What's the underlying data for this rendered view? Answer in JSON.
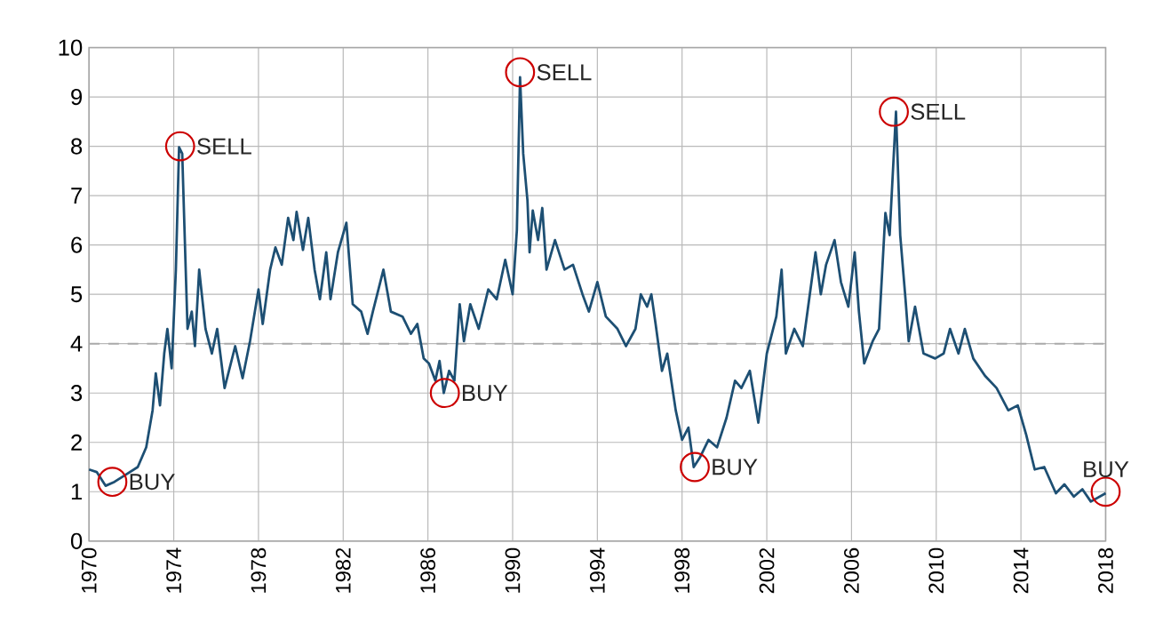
{
  "chart_data": {
    "type": "line",
    "x": [
      1970,
      1970.36,
      1970.78,
      1971.2,
      1971.75,
      1972.3,
      1972.7,
      1973.0,
      1973.15,
      1973.35,
      1973.55,
      1973.7,
      1973.9,
      1974.1,
      1974.25,
      1974.4,
      1974.55,
      1974.65,
      1974.85,
      1975.0,
      1975.2,
      1975.5,
      1975.8,
      1976.05,
      1976.4,
      1976.9,
      1977.25,
      1977.6,
      1978.0,
      1978.2,
      1978.55,
      1978.8,
      1979.1,
      1979.4,
      1979.65,
      1979.8,
      1980.1,
      1980.35,
      1980.65,
      1980.9,
      1981.2,
      1981.4,
      1981.75,
      1982.15,
      1982.45,
      1982.85,
      1983.15,
      1983.4,
      1983.9,
      1984.25,
      1984.8,
      1985.2,
      1985.5,
      1985.8,
      1986.05,
      1986.35,
      1986.55,
      1986.75,
      1987.0,
      1987.25,
      1987.5,
      1987.7,
      1988.0,
      1988.4,
      1988.85,
      1989.25,
      1989.65,
      1990.0,
      1990.2,
      1990.35,
      1990.5,
      1990.7,
      1990.8,
      1990.95,
      1991.2,
      1991.4,
      1991.6,
      1992.0,
      1992.45,
      1992.85,
      1993.3,
      1993.6,
      1994.0,
      1994.4,
      1994.95,
      1995.35,
      1995.8,
      1996.05,
      1996.35,
      1996.55,
      1996.75,
      1997.05,
      1997.3,
      1997.7,
      1998.0,
      1998.3,
      1998.55,
      1998.85,
      1999.25,
      1999.65,
      2000.1,
      2000.5,
      2000.8,
      2001.2,
      2001.6,
      2002.0,
      2002.45,
      2002.7,
      2002.9,
      2003.3,
      2003.7,
      2004.0,
      2004.3,
      2004.55,
      2004.8,
      2005.2,
      2005.5,
      2005.85,
      2006.15,
      2006.35,
      2006.6,
      2007.0,
      2007.3,
      2007.6,
      2007.8,
      2008.1,
      2008.3,
      2008.55,
      2008.7,
      2009.0,
      2009.4,
      2009.95,
      2010.35,
      2010.65,
      2011.05,
      2011.35,
      2011.75,
      2012.3,
      2012.85,
      2013.4,
      2013.85,
      2014.25,
      2014.65,
      2015.1,
      2015.65,
      2016.05,
      2016.5,
      2016.9,
      2017.3,
      2018.0
    ],
    "series": [
      {
        "color": "#1d4f73",
        "values": [
          1.45,
          1.4,
          1.12,
          1.2,
          1.35,
          1.5,
          1.9,
          2.65,
          3.4,
          2.75,
          3.8,
          4.3,
          3.5,
          5.5,
          7.98,
          7.85,
          5.7,
          4.3,
          4.65,
          3.95,
          5.5,
          4.3,
          3.8,
          4.3,
          3.1,
          3.95,
          3.3,
          4.05,
          5.1,
          4.4,
          5.5,
          5.95,
          5.6,
          6.55,
          6.1,
          6.67,
          5.9,
          6.55,
          5.5,
          4.9,
          5.85,
          4.9,
          5.85,
          6.45,
          4.8,
          4.65,
          4.2,
          4.65,
          5.5,
          4.65,
          4.55,
          4.2,
          4.4,
          3.7,
          3.6,
          3.25,
          3.65,
          3.0,
          3.45,
          3.25,
          4.8,
          4.05,
          4.8,
          4.3,
          5.1,
          4.9,
          5.7,
          5.0,
          6.3,
          9.4,
          7.85,
          6.9,
          5.85,
          6.7,
          6.1,
          6.75,
          5.5,
          6.1,
          5.5,
          5.6,
          5.0,
          4.65,
          5.25,
          4.55,
          4.3,
          3.95,
          4.3,
          5.0,
          4.75,
          5.0,
          4.4,
          3.45,
          3.8,
          2.65,
          2.05,
          2.3,
          1.5,
          1.7,
          2.05,
          1.9,
          2.5,
          3.25,
          3.1,
          3.45,
          2.4,
          3.8,
          4.55,
          5.5,
          3.8,
          4.3,
          3.95,
          4.9,
          5.85,
          5.0,
          5.6,
          6.1,
          5.25,
          4.75,
          5.85,
          4.65,
          3.6,
          4.05,
          4.3,
          6.65,
          6.2,
          8.7,
          6.2,
          4.9,
          4.05,
          4.75,
          3.8,
          3.7,
          3.8,
          4.3,
          3.8,
          4.3,
          3.7,
          3.35,
          3.1,
          2.65,
          2.75,
          2.15,
          1.45,
          1.5,
          0.97,
          1.15,
          0.9,
          1.05,
          0.8,
          0.97
        ]
      }
    ],
    "xlim": [
      1970,
      2018
    ],
    "ylim": [
      0,
      10
    ],
    "xticks": [
      1970,
      1974,
      1978,
      1982,
      1986,
      1990,
      1994,
      1998,
      2002,
      2006,
      2010,
      2014,
      2018
    ],
    "yticks": [
      0,
      1,
      2,
      3,
      4,
      5,
      6,
      7,
      8,
      9,
      10
    ],
    "grid": true,
    "ref_lines": [
      {
        "axis": "y",
        "value": 4,
        "color": "#aaaaaa",
        "line_style": "dashed"
      }
    ],
    "annotations": [
      {
        "text": "BUY",
        "x": 1971.1,
        "y": 1.2
      },
      {
        "text": "SELL",
        "x": 1974.3,
        "y": 8.0
      },
      {
        "text": "BUY",
        "x": 1986.8,
        "y": 3.0
      },
      {
        "text": "SELL",
        "x": 1990.35,
        "y": 9.5
      },
      {
        "text": "BUY",
        "x": 1998.6,
        "y": 1.5
      },
      {
        "text": "SELL",
        "x": 2008.0,
        "y": 8.7
      },
      {
        "text": "BUY",
        "x": 2018.0,
        "y": 1.0
      }
    ]
  }
}
